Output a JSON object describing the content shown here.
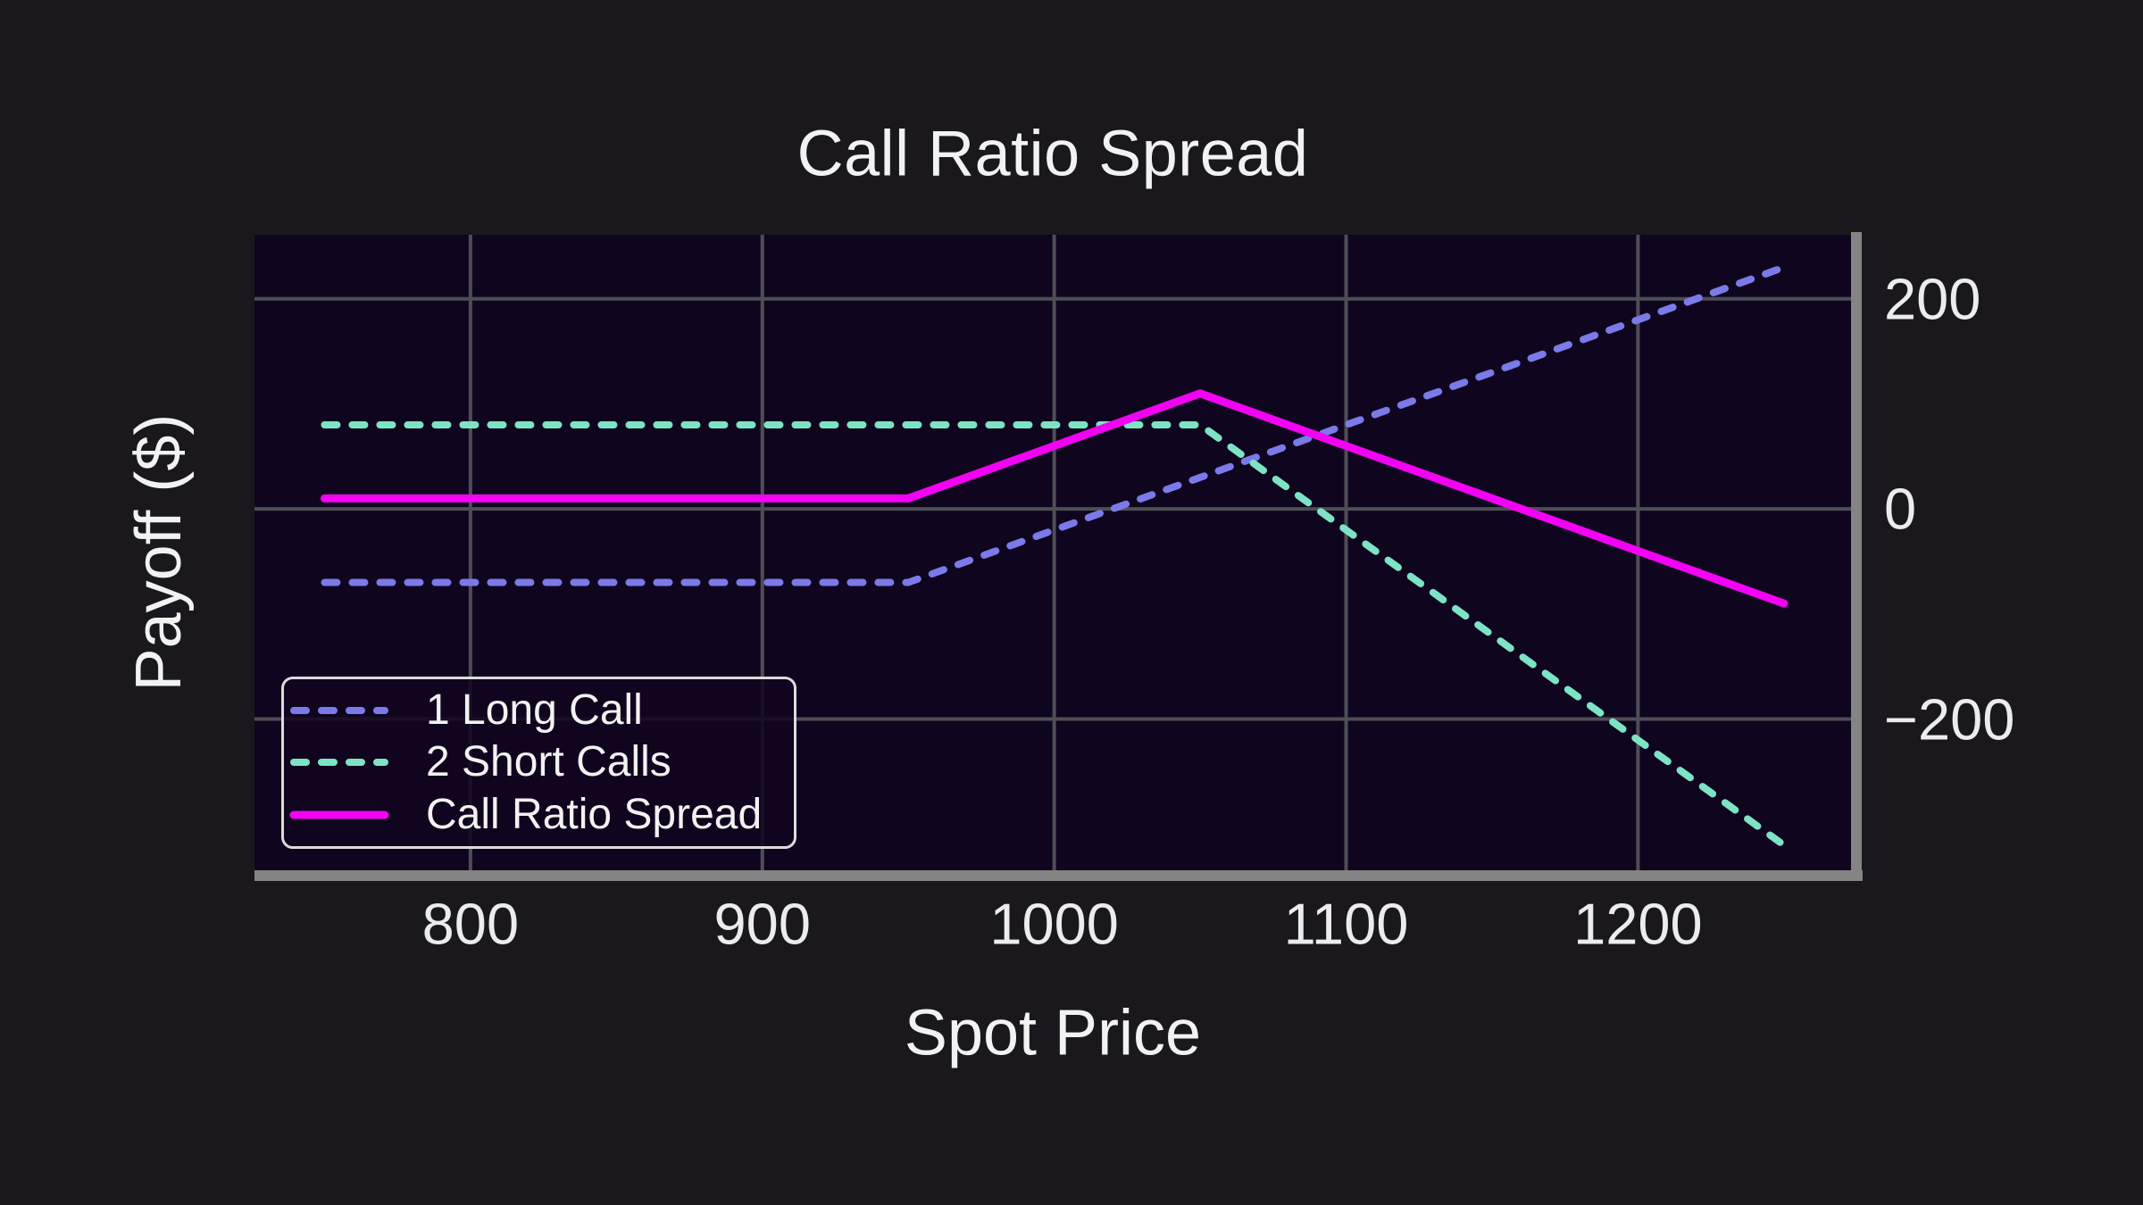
{
  "chart_data": {
    "type": "line",
    "title": "Call Ratio Spread",
    "xlabel": "Spot Price",
    "ylabel": "Payoff ($)",
    "x_ticks": [
      800,
      900,
      1000,
      1100,
      1200
    ],
    "y_ticks": [
      -200,
      0,
      200
    ],
    "xlim": [
      726,
      1273
    ],
    "ylim": [
      -344,
      261
    ],
    "grid": true,
    "legend_position": "lower left",
    "series": [
      {
        "name": "1 Long Call",
        "color": "#7b7ae9",
        "style": "dashed",
        "line_width": 8,
        "points": [
          [
            750,
            -70
          ],
          [
            950,
            -70
          ],
          [
            1250,
            230
          ]
        ]
      },
      {
        "name": "2 Short Calls",
        "color": "#7ce4c4",
        "style": "dashed",
        "line_width": 8,
        "points": [
          [
            750,
            80
          ],
          [
            1050,
            80
          ],
          [
            1250,
            -320
          ]
        ]
      },
      {
        "name": "Call Ratio Spread",
        "color": "#f303f3",
        "style": "solid",
        "line_width": 9,
        "points": [
          [
            750,
            10
          ],
          [
            950,
            10
          ],
          [
            1050,
            110
          ],
          [
            1250,
            -90
          ]
        ]
      }
    ]
  },
  "colors": {
    "figure_bg": "#1a181d",
    "axes_bg": "#10051e",
    "grid": "#4e4e55",
    "spine": "#848484",
    "text": "#f2f2f2",
    "tick_text": "#ececec",
    "legend_border": "#dcdcdc",
    "legend_bg": "rgba(16,5,30,0.85)"
  }
}
